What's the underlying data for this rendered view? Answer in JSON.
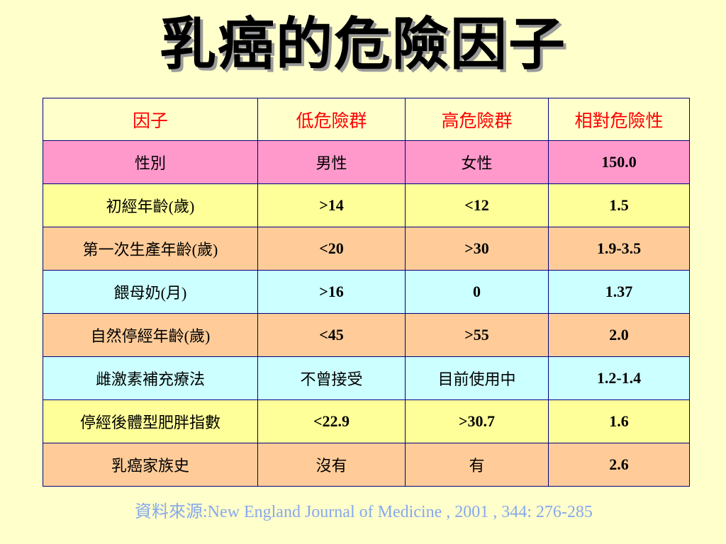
{
  "slide": {
    "title": "乳癌的危險因子",
    "source": "資料來源:New England Journal of Medicine , 2001 , 344: 276-285"
  },
  "table": {
    "headers": [
      "因子",
      "低危險群",
      "高危險群",
      "相對危險性"
    ],
    "rows": [
      {
        "color": "#FF99CC",
        "cells": [
          "性別",
          "男性",
          "女性",
          "150.0"
        ]
      },
      {
        "color": "#FFFF99",
        "cells": [
          "初經年齡(歲)",
          ">14",
          "<12",
          "1.5"
        ]
      },
      {
        "color": "#FFCC99",
        "cells": [
          "第一次生產年齡(歲)",
          "<20",
          ">30",
          "1.9-3.5"
        ]
      },
      {
        "color": "#CCFFFF",
        "cells": [
          "餵母奶(月)",
          ">16",
          "0",
          "1.37"
        ]
      },
      {
        "color": "#FFCC99",
        "cells": [
          "自然停經年齡(歲)",
          "<45",
          ">55",
          "2.0"
        ]
      },
      {
        "color": "#CCFFFF",
        "cells": [
          "雌激素補充療法",
          "不曾接受",
          "目前使用中",
          "1.2-1.4"
        ]
      },
      {
        "color": "#FFFF99",
        "cells": [
          "停經後體型肥胖指數",
          "<22.9",
          ">30.7",
          "1.6"
        ]
      },
      {
        "color": "#FFCC99",
        "cells": [
          "乳癌家族史",
          "沒有",
          "有",
          "2.6"
        ]
      }
    ]
  },
  "colors": {
    "background": "#FFFFCC",
    "header_text": "#FF0000",
    "border": "#000080",
    "source_text": "#86A8EC"
  }
}
